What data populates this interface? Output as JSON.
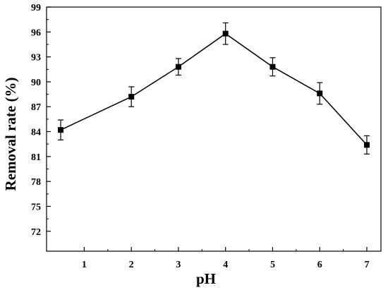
{
  "chart_data": {
    "type": "line",
    "title": "",
    "xlabel": "pH",
    "ylabel": "Removal rate (%)",
    "x": [
      0.5,
      2,
      3,
      4,
      5,
      6,
      7
    ],
    "series": [
      {
        "values": [
          84.2,
          88.2,
          91.8,
          95.8,
          91.8,
          88.6,
          82.4
        ],
        "error": [
          1.2,
          1.2,
          1.0,
          1.3,
          1.1,
          1.3,
          1.1
        ],
        "marker": "square",
        "color": "#000000"
      }
    ],
    "xlim": [
      0.2,
      7.3
    ],
    "ylim": [
      69.6,
      99
    ],
    "xticks": [
      1,
      2,
      3,
      4,
      5,
      6,
      7
    ],
    "xtick_labels": [
      "1",
      "2",
      "3",
      "4",
      "5",
      "6",
      "7"
    ],
    "yticks": [
      72,
      75,
      78,
      81,
      84,
      87,
      90,
      93,
      96,
      99
    ],
    "ytick_labels": [
      "72",
      "75",
      "78",
      "81",
      "84",
      "87",
      "90",
      "93",
      "96",
      "99"
    ],
    "grid": false,
    "legend": "none"
  }
}
